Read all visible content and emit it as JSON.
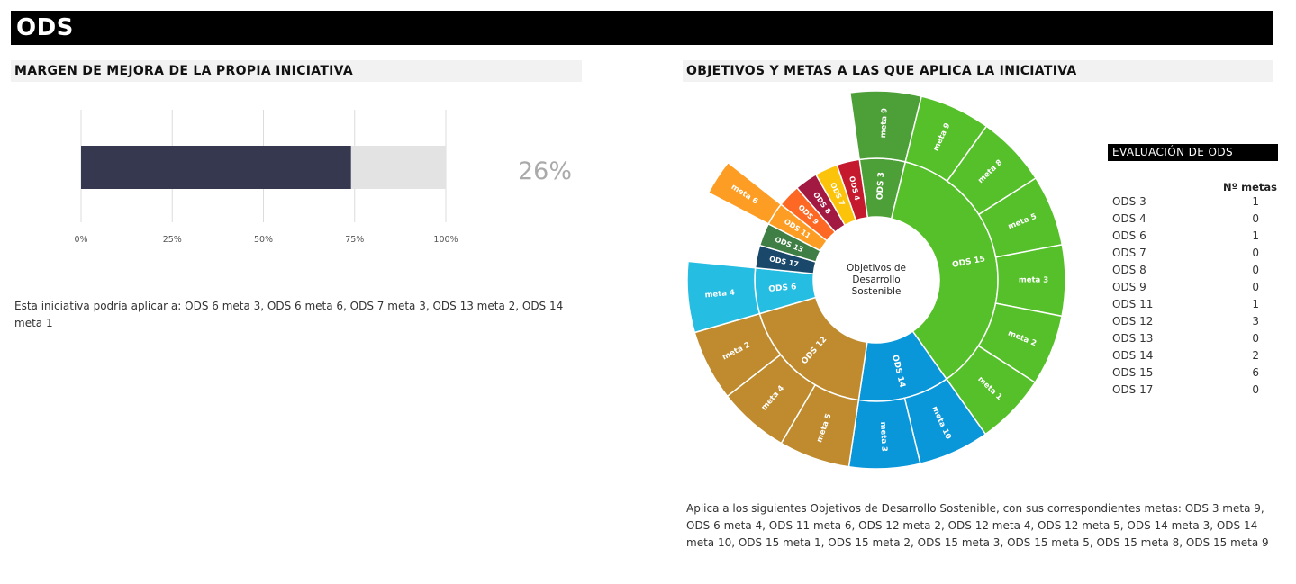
{
  "page": {
    "title": "ODS"
  },
  "left_panel": {
    "title": "MARGEN DE MEJORA DE LA PROPIA INICIATIVA",
    "description": "Esta iniciativa podría aplicar a: ODS 6 meta 3, ODS 6 meta 6, ODS 7 meta 3, ODS 13 meta 2, ODS 14 meta 1"
  },
  "right_panel": {
    "title": "OBJETIVOS Y METAS A LAS QUE APLICA LA INICIATIVA",
    "description": "Aplica a los siguientes Objetivos de Desarrollo Sostenible, con sus correspondientes metas: ODS 3 meta 9, ODS 6 meta 4, ODS 11 meta 6, ODS 12 meta 2, ODS 12 meta 4, ODS 12 meta 5, ODS 14 meta 3, ODS 14 meta 10, ODS 15 meta 1, ODS 15 meta 2, ODS 15 meta 3, ODS 15 meta 5, ODS 15 meta 8, ODS 15 meta 9"
  },
  "evaluation": {
    "title": "EVALUACIÓN DE ODS",
    "column_header": "Nº metas",
    "rows": [
      {
        "label": "ODS 3",
        "value": "1"
      },
      {
        "label": "ODS 4",
        "value": "0"
      },
      {
        "label": "ODS 6",
        "value": "1"
      },
      {
        "label": "ODS 7",
        "value": "0"
      },
      {
        "label": "ODS 8",
        "value": "0"
      },
      {
        "label": "ODS 9",
        "value": "0"
      },
      {
        "label": "ODS 11",
        "value": "1"
      },
      {
        "label": "ODS 12",
        "value": "3"
      },
      {
        "label": "ODS 13",
        "value": "0"
      },
      {
        "label": "ODS 14",
        "value": "2"
      },
      {
        "label": "ODS 15",
        "value": "6"
      },
      {
        "label": "ODS 17",
        "value": "0"
      }
    ]
  },
  "chart_data": [
    {
      "type": "bar",
      "orientation": "horizontal",
      "value_percent": 74,
      "display_value": "26%",
      "xlim": [
        0,
        100
      ],
      "ticks": [
        "0%",
        "25%",
        "50%",
        "75%",
        "100%"
      ],
      "tick_values": [
        0,
        25,
        50,
        75,
        100
      ],
      "colors": {
        "filled": "#363850",
        "remainder": "#e3e3e3",
        "label": "#aaaaaa"
      }
    },
    {
      "type": "sunburst",
      "center_label": [
        "Objetivos de",
        "Desarrollo",
        "Sostenible"
      ],
      "inner": [
        {
          "name": "ODS 3",
          "weight": 1,
          "color": "#4d9f38",
          "goals": [
            "meta 9"
          ]
        },
        {
          "name": "ODS 15",
          "weight": 6,
          "color": "#56c02b",
          "goals": [
            "meta 8",
            "meta 5",
            "meta 3",
            "meta 2",
            "meta 1"
          ],
          "extra_first_goal": "meta 9"
        },
        {
          "name": "ODS 14",
          "weight": 2,
          "color": "#0a97d9",
          "goals": [
            "meta 10",
            "meta 3"
          ]
        },
        {
          "name": "ODS 12",
          "weight": 3,
          "color": "#bf8b2e",
          "goals": [
            "meta 5",
            "meta 4",
            "meta 2"
          ]
        },
        {
          "name": "ODS 6",
          "weight": 1,
          "color": "#26bde2",
          "goals": [
            "meta 4"
          ]
        },
        {
          "name": "ODS 17",
          "weight": 0.5,
          "color": "#19486a",
          "goals": []
        },
        {
          "name": "ODS 13",
          "weight": 0.5,
          "color": "#3f7e44",
          "goals": []
        },
        {
          "name": "ODS 11",
          "weight": 0.5,
          "color": "#fd9d24",
          "goals": [
            "meta 6"
          ]
        },
        {
          "name": "ODS 9",
          "weight": 0.5,
          "color": "#fd6925",
          "goals": []
        },
        {
          "name": "ODS 8",
          "weight": 0.5,
          "color": "#a21942",
          "goals": []
        },
        {
          "name": "ODS 7",
          "weight": 0.5,
          "color": "#fcc30b",
          "goals": []
        },
        {
          "name": "ODS 4",
          "weight": 0.5,
          "color": "#c5192d",
          "goals": []
        }
      ]
    }
  ]
}
